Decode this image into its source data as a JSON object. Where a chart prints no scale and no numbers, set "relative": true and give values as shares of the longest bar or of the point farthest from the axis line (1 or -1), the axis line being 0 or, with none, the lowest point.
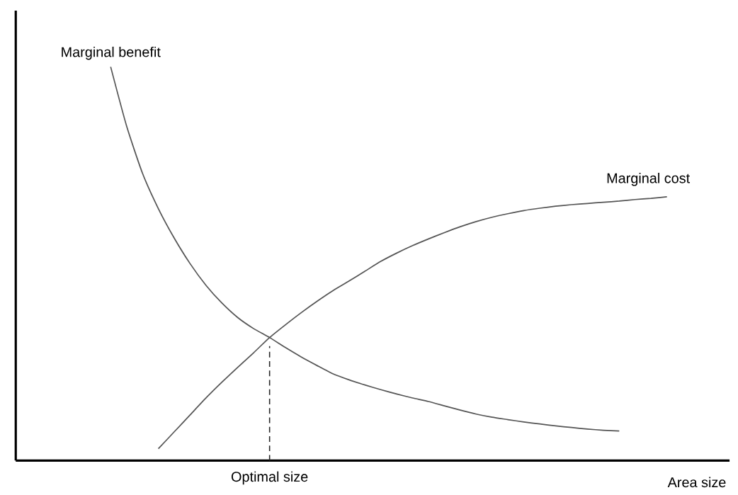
{
  "chart_data": {
    "type": "line",
    "relative": true,
    "xlabel": "Area size",
    "categories": [
      null,
      null,
      null,
      null,
      null,
      null,
      null,
      null,
      null,
      null,
      null,
      null,
      null,
      null,
      null,
      null,
      null,
      null,
      null,
      null,
      null,
      null,
      null,
      null,
      null,
      null,
      null,
      null,
      null,
      null,
      null,
      null,
      null,
      null,
      null,
      null
    ],
    "series": [
      {
        "name": "Marginal benefit",
        "color": "#555555",
        "values": [
          1.0,
          0.85,
          0.73,
          0.64,
          0.565,
          0.5,
          0.445,
          0.4,
          0.363,
          0.335,
          0.3125,
          0.287,
          0.263,
          0.241,
          0.22,
          0.205,
          0.192,
          0.18,
          0.169,
          0.159,
          0.15,
          0.139,
          0.128,
          0.118,
          0.11,
          0.104,
          0.098,
          0.093,
          0.088,
          0.084,
          0.08,
          0.077,
          0.075,
          null,
          null,
          null
        ]
      },
      {
        "name": "Marginal cost",
        "color": "#555555",
        "values": [
          null,
          null,
          null,
          0.03,
          0.073,
          0.116,
          0.159,
          0.199,
          0.237,
          0.274,
          0.3125,
          0.345,
          0.376,
          0.405,
          0.432,
          0.456,
          0.481,
          0.506,
          0.527,
          0.546,
          0.563,
          0.579,
          0.594,
          0.607,
          0.618,
          0.627,
          0.635,
          0.641,
          0.646,
          0.65,
          0.653,
          0.656,
          0.659,
          0.663,
          0.666,
          0.67
        ]
      }
    ],
    "annotations": [
      "Optimal size"
    ],
    "marker": "none",
    "line_style": "solid"
  }
}
